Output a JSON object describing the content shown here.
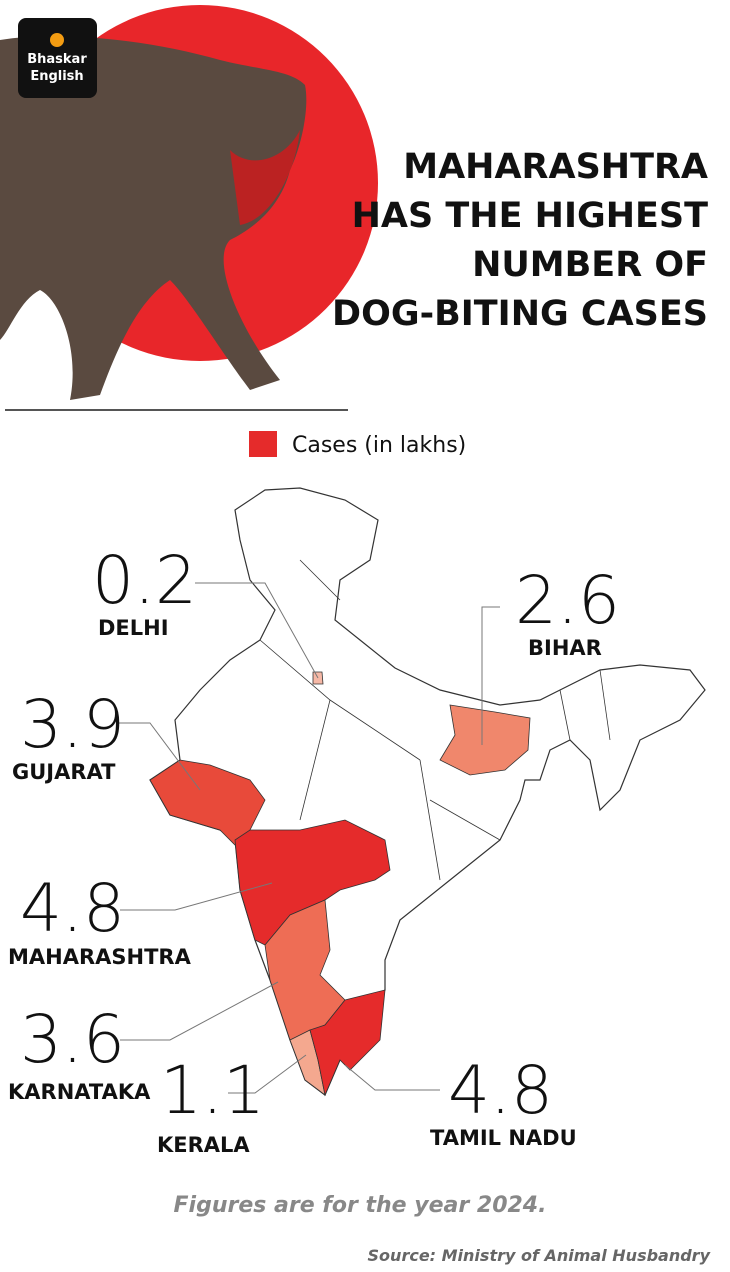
{
  "logo": {
    "line1": "Bhaskar",
    "line2": "English"
  },
  "chart_data": {
    "type": "map",
    "title": [
      "MAHARASHTRA",
      "HAS THE HIGHEST",
      "NUMBER OF",
      "DOG-BITING CASES"
    ],
    "legend_label": "Cases (in lakhs)",
    "legend_color": "#e52b2b",
    "regions": [
      {
        "name": "DELHI",
        "value": 0.2,
        "color": "#f6b8a6"
      },
      {
        "name": "BIHAR",
        "value": 2.6,
        "color": "#f0876c"
      },
      {
        "name": "GUJARAT",
        "value": 3.9,
        "color": "#e84a3a"
      },
      {
        "name": "MAHARASHTRA",
        "value": 4.8,
        "color": "#e52b2b"
      },
      {
        "name": "KARNATAKA",
        "value": 3.6,
        "color": "#ee6d55"
      },
      {
        "name": "KERALA",
        "value": 1.1,
        "color": "#f4a88f"
      },
      {
        "name": "TAMIL NADU",
        "value": 4.8,
        "color": "#e52b2b"
      }
    ],
    "note": "Figures are for the year 2024.",
    "source": "Source: Ministry of Animal Husbandry"
  }
}
